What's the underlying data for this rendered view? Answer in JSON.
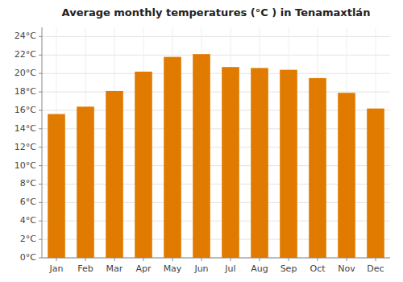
{
  "chart_data": {
    "type": "bar",
    "title": "Average monthly temperatures (°C ) in Tenamaxtlán",
    "categories": [
      "Jan",
      "Feb",
      "Mar",
      "Apr",
      "May",
      "Jun",
      "Jul",
      "Aug",
      "Sep",
      "Oct",
      "Nov",
      "Dec"
    ],
    "values": [
      15.6,
      16.4,
      18.1,
      20.2,
      21.8,
      22.1,
      20.7,
      20.6,
      20.4,
      19.5,
      17.9,
      16.2
    ],
    "color": "#E07B00",
    "ylim": [
      0,
      25
    ],
    "yticks": [
      {
        "value": 0,
        "label": "0°C"
      },
      {
        "value": 2,
        "label": "2°C"
      },
      {
        "value": 4,
        "label": "4°C"
      },
      {
        "value": 6,
        "label": "6°C"
      },
      {
        "value": 8,
        "label": "8°C"
      },
      {
        "value": 10,
        "label": "10°C"
      },
      {
        "value": 12,
        "label": "12°C"
      },
      {
        "value": 14,
        "label": "14°C"
      },
      {
        "value": 16,
        "label": "16°C"
      },
      {
        "value": 18,
        "label": "18°C"
      },
      {
        "value": 20,
        "label": "20°C"
      },
      {
        "value": 22,
        "label": "22°C"
      },
      {
        "value": 24,
        "label": "24°C"
      }
    ],
    "grid": true
  }
}
